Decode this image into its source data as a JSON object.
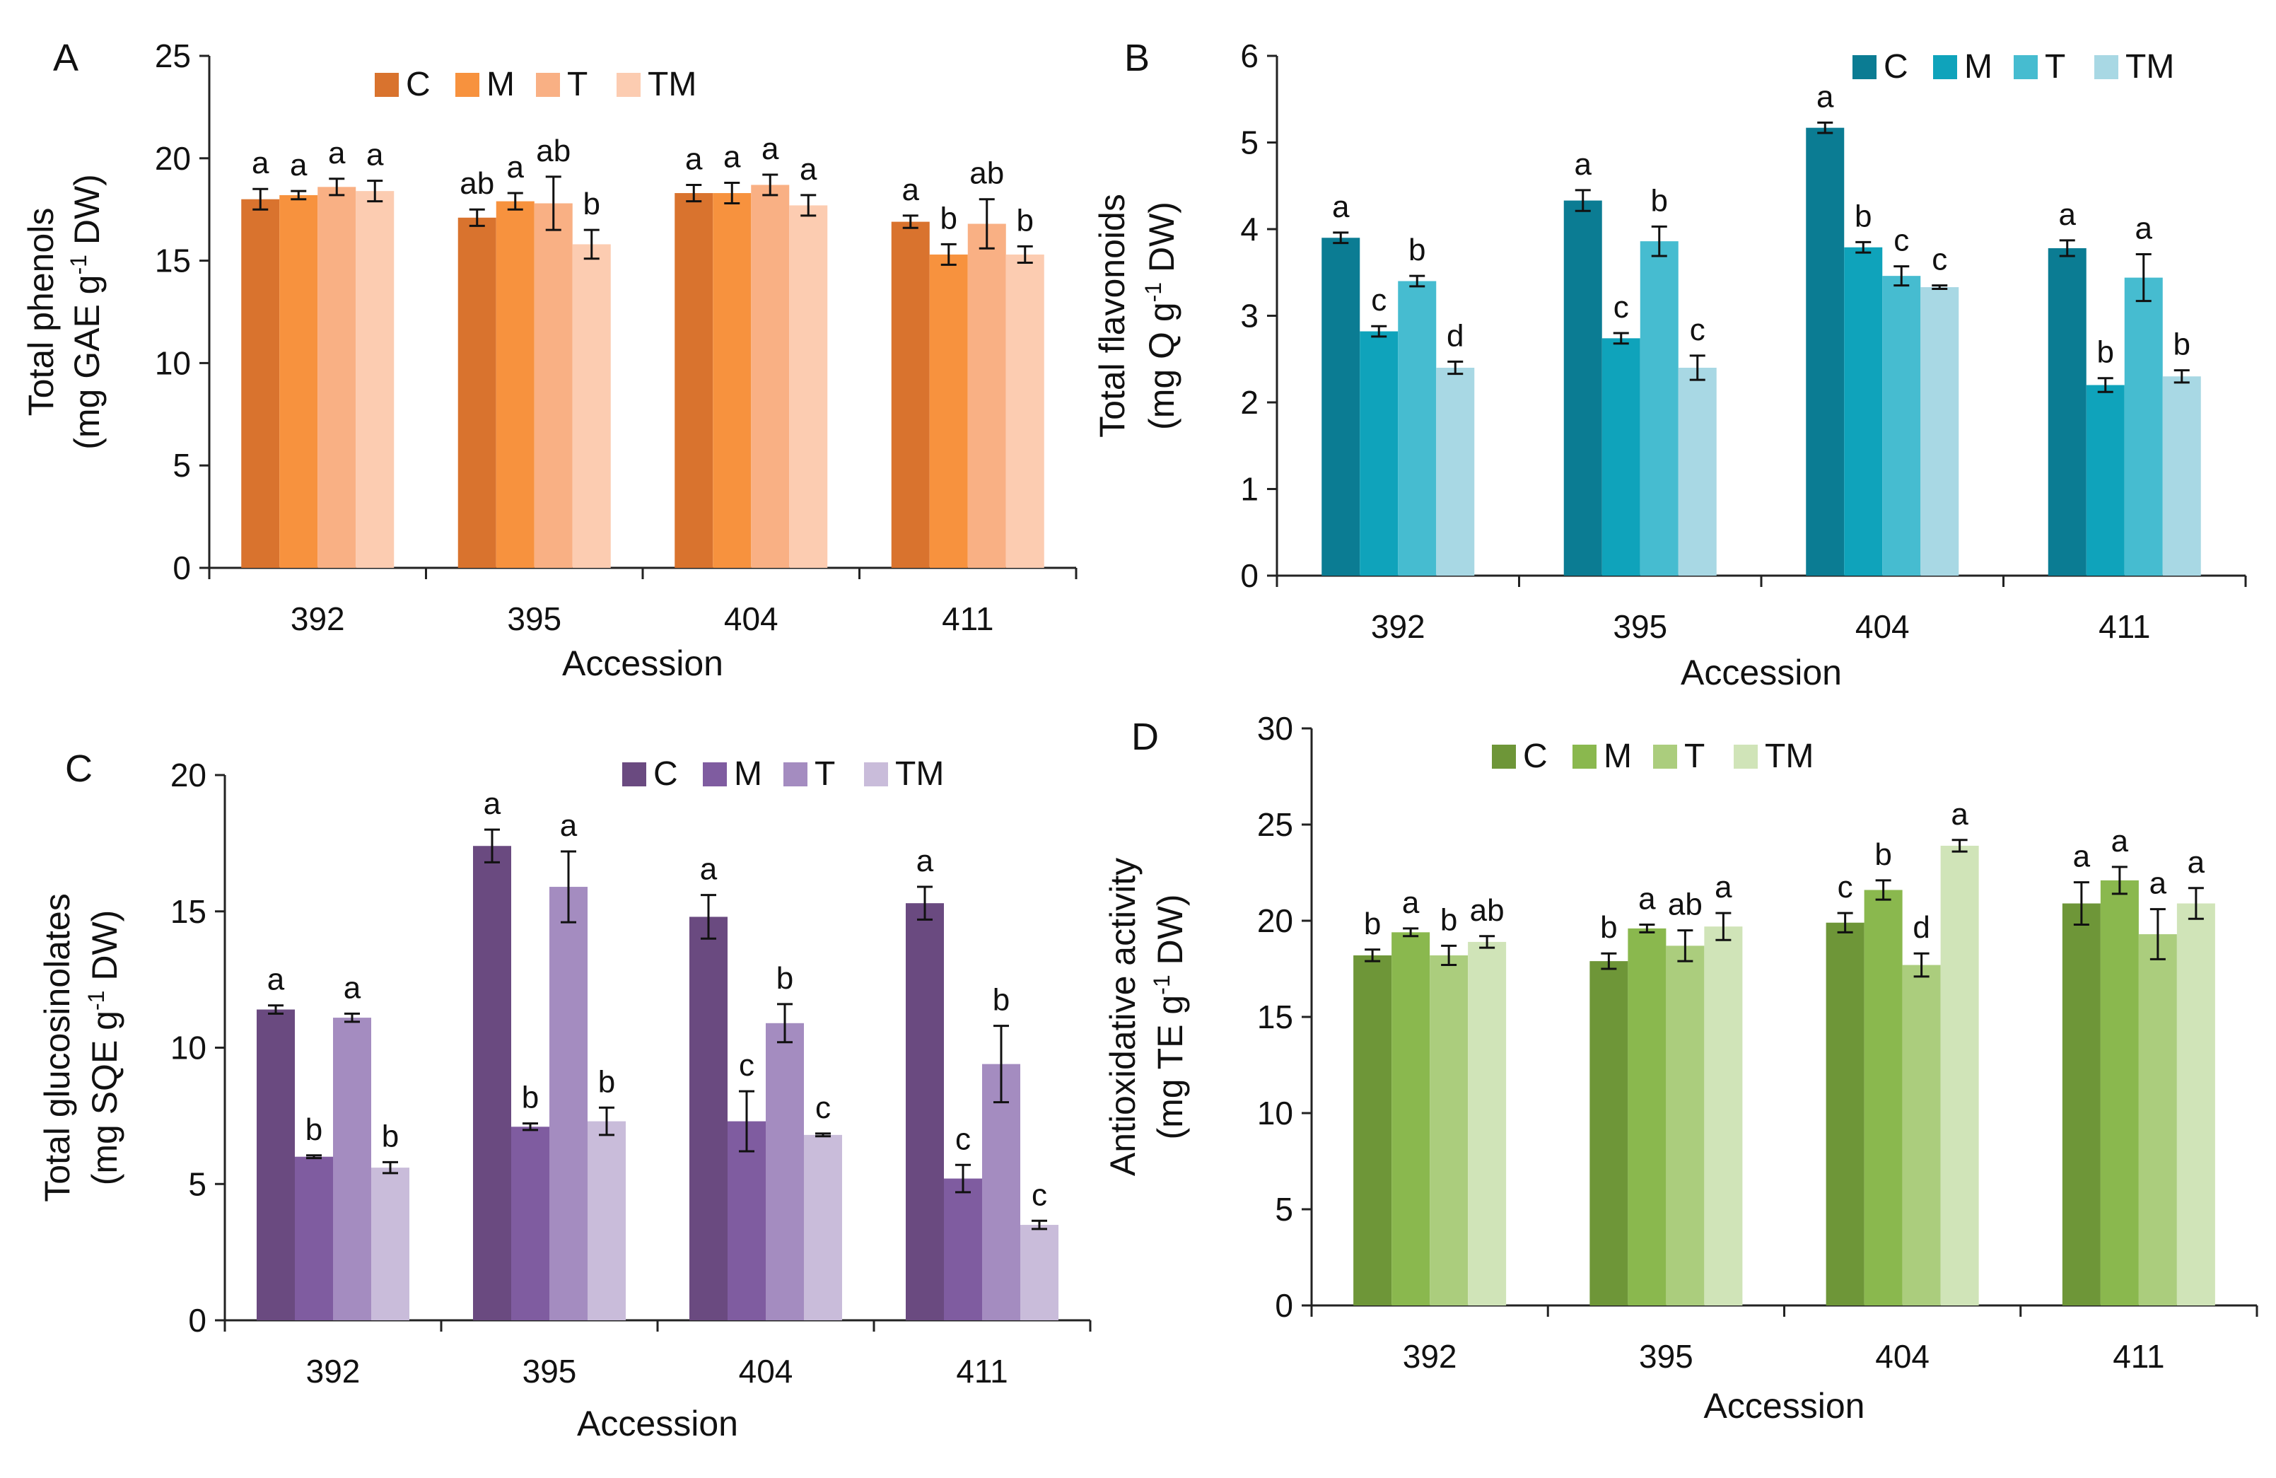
{
  "chart_data": [
    {
      "type": "bar",
      "panel_label": "A",
      "categories": [
        "392",
        "395",
        "404",
        "411"
      ],
      "xlabel": "Accession",
      "ylabel_main": "Total phenols",
      "ylabel_unit": "(mg GAE g",
      "ylabel_sup": "-1",
      "ylabel_tail": " DW)",
      "ylim": [
        0,
        25
      ],
      "yticks": [
        "0",
        "5",
        "10",
        "15",
        "20",
        "25"
      ],
      "legend_position": "top",
      "series": [
        {
          "name": "C",
          "color": "#d9732e",
          "values": [
            18.0,
            17.1,
            18.3,
            16.9
          ],
          "errors": [
            0.5,
            0.4,
            0.4,
            0.3
          ],
          "labels": [
            "a",
            "ab",
            "a",
            "a"
          ]
        },
        {
          "name": "M",
          "color": "#f7923e",
          "values": [
            18.2,
            17.9,
            18.3,
            15.3
          ],
          "errors": [
            0.2,
            0.4,
            0.5,
            0.5
          ],
          "labels": [
            "a",
            "a",
            "a",
            "b"
          ]
        },
        {
          "name": "T",
          "color": "#f9b084",
          "values": [
            18.6,
            17.8,
            18.7,
            16.8
          ],
          "errors": [
            0.4,
            1.3,
            0.5,
            1.2
          ],
          "labels": [
            "a",
            "ab",
            "a",
            "ab"
          ]
        },
        {
          "name": "TM",
          "color": "#fcccb1",
          "values": [
            18.4,
            15.8,
            17.7,
            15.3
          ],
          "errors": [
            0.5,
            0.7,
            0.5,
            0.4
          ],
          "labels": [
            "a",
            "b",
            "a",
            "b"
          ]
        }
      ]
    },
    {
      "type": "bar",
      "panel_label": "B",
      "categories": [
        "392",
        "395",
        "404",
        "411"
      ],
      "xlabel": "Accession",
      "ylabel_main": "Total flavonoids",
      "ylabel_unit": "(mg Q g",
      "ylabel_sup": "-1",
      "ylabel_tail": " DW)",
      "ylim": [
        0,
        6
      ],
      "yticks": [
        "0",
        "1",
        "2",
        "3",
        "4",
        "5",
        "6"
      ],
      "legend_position": "top-right",
      "series": [
        {
          "name": "C",
          "color": "#0b7c93",
          "values": [
            3.9,
            4.33,
            5.17,
            3.78
          ],
          "errors": [
            0.06,
            0.12,
            0.06,
            0.09
          ],
          "labels": [
            "a",
            "a",
            "a",
            "a"
          ]
        },
        {
          "name": "M",
          "color": "#0fa3bb",
          "values": [
            2.82,
            2.74,
            3.79,
            2.2
          ],
          "errors": [
            0.06,
            0.06,
            0.06,
            0.08
          ],
          "labels": [
            "c",
            "c",
            "b",
            "b"
          ]
        },
        {
          "name": "T",
          "color": "#46bcd0",
          "values": [
            3.4,
            3.86,
            3.46,
            3.44
          ],
          "errors": [
            0.06,
            0.17,
            0.11,
            0.27
          ],
          "labels": [
            "b",
            "b",
            "c",
            "a"
          ]
        },
        {
          "name": "TM",
          "color": "#a8d8e4",
          "values": [
            2.4,
            2.4,
            3.33,
            2.3
          ],
          "errors": [
            0.07,
            0.14,
            0.02,
            0.07
          ],
          "labels": [
            "d",
            "c",
            "c",
            "b"
          ]
        }
      ]
    },
    {
      "type": "bar",
      "panel_label": "C",
      "categories": [
        "392",
        "395",
        "404",
        "411"
      ],
      "xlabel": "Accession",
      "ylabel_main": "Total glucosinolates",
      "ylabel_unit": "(mg SQE g",
      "ylabel_sup": "-1",
      "ylabel_tail": " DW)",
      "ylim": [
        0,
        20
      ],
      "yticks": [
        "0",
        "5",
        "10",
        "15",
        "20"
      ],
      "legend_position": "top-right",
      "series": [
        {
          "name": "C",
          "color": "#6a4a80",
          "values": [
            11.4,
            17.4,
            14.8,
            15.3
          ],
          "errors": [
            0.15,
            0.6,
            0.8,
            0.6
          ],
          "labels": [
            "a",
            "a",
            "a",
            "a"
          ]
        },
        {
          "name": "M",
          "color": "#7f5ca0",
          "values": [
            6.0,
            7.1,
            7.3,
            5.2
          ],
          "errors": [
            0.05,
            0.12,
            1.1,
            0.5
          ],
          "labels": [
            "b",
            "b",
            "c",
            "c"
          ]
        },
        {
          "name": "T",
          "color": "#a48cc0",
          "values": [
            11.1,
            15.9,
            10.9,
            9.4
          ],
          "errors": [
            0.15,
            1.3,
            0.7,
            1.4
          ],
          "labels": [
            "a",
            "a",
            "b",
            "b"
          ]
        },
        {
          "name": "TM",
          "color": "#c9bcda",
          "values": [
            5.6,
            7.3,
            6.8,
            3.5
          ],
          "errors": [
            0.2,
            0.5,
            0.05,
            0.15
          ],
          "labels": [
            "b",
            "b",
            "c",
            "c"
          ]
        }
      ]
    },
    {
      "type": "bar",
      "panel_label": "D",
      "categories": [
        "392",
        "395",
        "404",
        "411"
      ],
      "xlabel": "Accession",
      "ylabel_main": "Antioxidative activity",
      "ylabel_unit": "(mg TE g",
      "ylabel_sup": "-1",
      "ylabel_tail": " DW)",
      "ylim": [
        0,
        30
      ],
      "yticks": [
        "0",
        "5",
        "10",
        "15",
        "20",
        "25",
        "30"
      ],
      "legend_position": "top",
      "series": [
        {
          "name": "C",
          "color": "#6e9638",
          "values": [
            18.2,
            17.9,
            19.9,
            20.9
          ],
          "errors": [
            0.3,
            0.4,
            0.5,
            1.1
          ],
          "labels": [
            "b",
            "b",
            "c",
            "a"
          ]
        },
        {
          "name": "M",
          "color": "#8ab84e",
          "values": [
            19.4,
            19.6,
            21.6,
            22.1
          ],
          "errors": [
            0.2,
            0.2,
            0.5,
            0.7
          ],
          "labels": [
            "a",
            "a",
            "b",
            "a"
          ]
        },
        {
          "name": "T",
          "color": "#abcd7d",
          "values": [
            18.2,
            18.7,
            17.7,
            19.3
          ],
          "errors": [
            0.5,
            0.8,
            0.6,
            1.3
          ],
          "labels": [
            "b",
            "ab",
            "d",
            "a"
          ]
        },
        {
          "name": "TM",
          "color": "#d0e4b8",
          "values": [
            18.9,
            19.7,
            23.9,
            20.9
          ],
          "errors": [
            0.3,
            0.7,
            0.3,
            0.8
          ],
          "labels": [
            "ab",
            "a",
            "a",
            "a"
          ]
        }
      ]
    }
  ]
}
